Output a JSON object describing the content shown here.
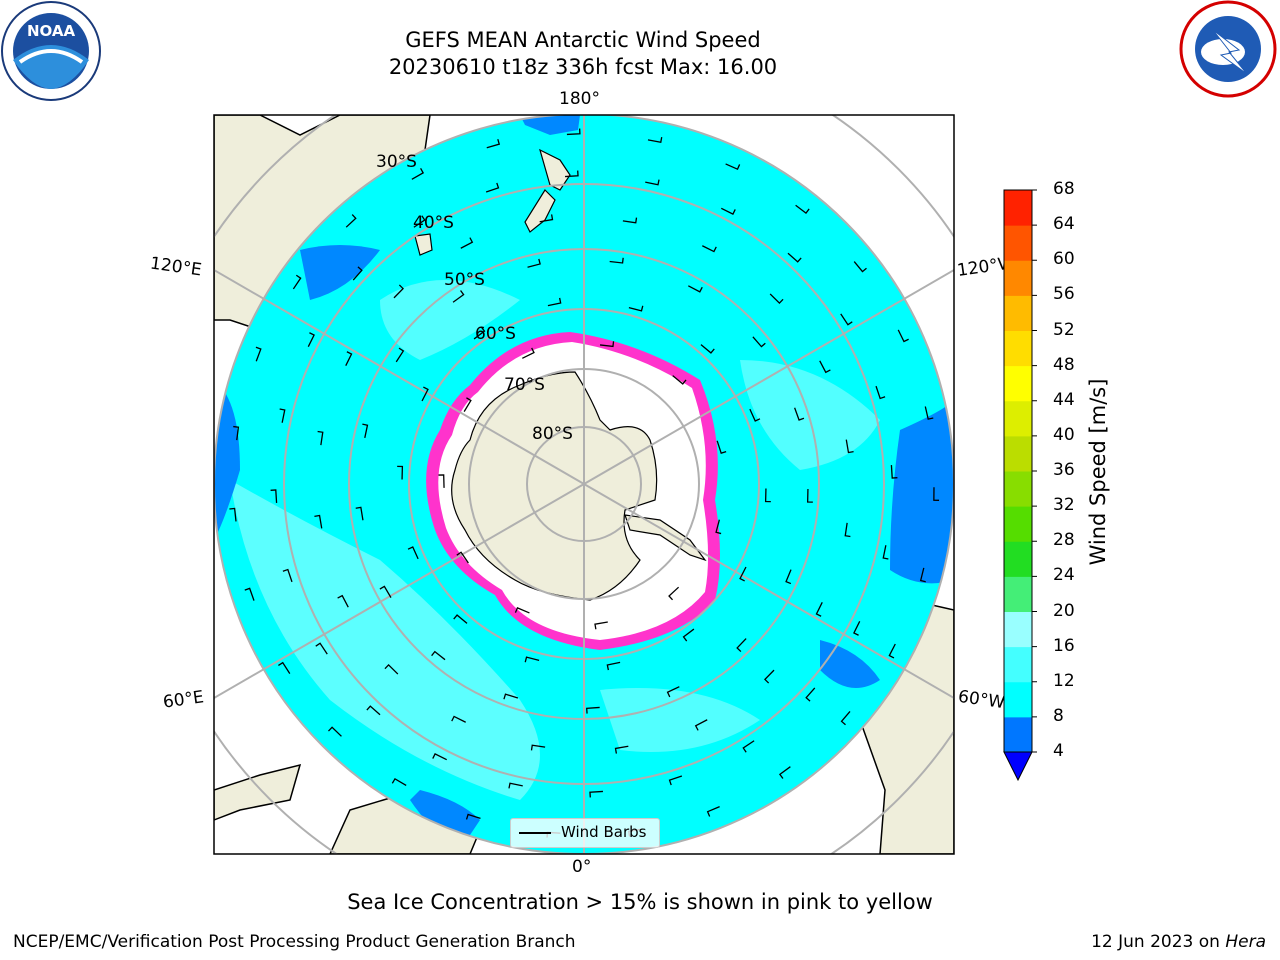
{
  "header": {
    "title_line1": "GEFS MEAN Antarctic Wind Speed",
    "title_line2": "20230610 t18z 336h fcst   Max: 16.00",
    "noaa_logo": "NOAA",
    "nws_logo": "NATIONAL WEATHER SERVICE"
  },
  "map": {
    "lon_labels": {
      "top": "180°",
      "bottom": "0°",
      "left_upper": "120°E",
      "left_lower": "60°E",
      "right_upper": "120°W",
      "right_lower": "60°W"
    },
    "lat_labels": [
      "30°S",
      "40°S",
      "50°S",
      "60°S",
      "70°S",
      "80°S"
    ],
    "legend_label": "Wind Barbs"
  },
  "colorbar": {
    "label": "Wind Speed [m/s]",
    "ticks": [
      "4",
      "8",
      "12",
      "16",
      "20",
      "24",
      "28",
      "32",
      "36",
      "40",
      "44",
      "48",
      "52",
      "56",
      "60",
      "64",
      "68"
    ],
    "colors": [
      "#0077ff",
      "#00ffff",
      "#44ffff",
      "#99ffff",
      "#44ee77",
      "#22dd22",
      "#55dd00",
      "#88dd00",
      "#bbdd00",
      "#ddee00",
      "#ffff00",
      "#ffdd00",
      "#ffbb00",
      "#ff8800",
      "#ff5500",
      "#ff2200"
    ],
    "extend_color": "#0000ff"
  },
  "caption": "Sea Ice Concentration > 15% is shown in pink to yellow",
  "footer": {
    "left": "NCEP/EMC/Verification Post Processing Product Generation Branch",
    "date": "12 Jun 2023 on ",
    "machine": "Hera"
  }
}
